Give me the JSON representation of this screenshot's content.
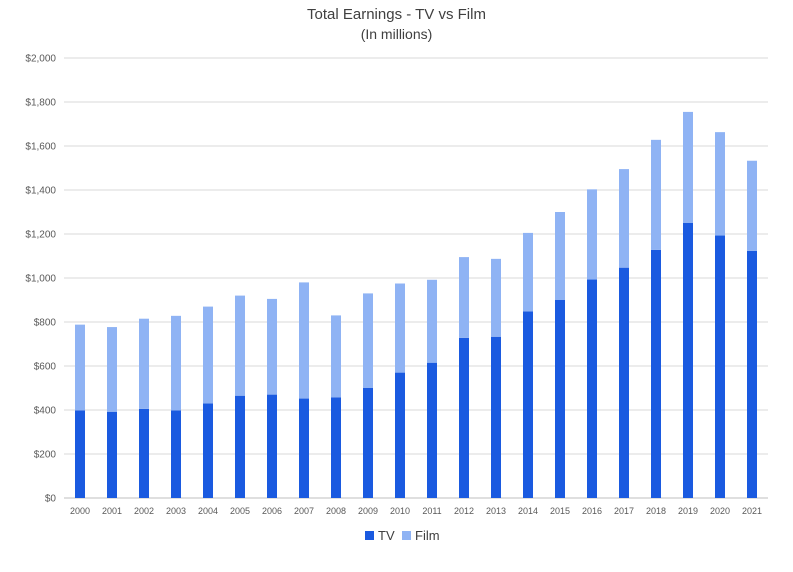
{
  "chart_data": {
    "type": "bar",
    "stacked": true,
    "title": "Total Earnings - TV vs Film",
    "subtitle": "(In millions)",
    "categories": [
      "2000",
      "2001",
      "2002",
      "2003",
      "2004",
      "2005",
      "2006",
      "2007",
      "2008",
      "2009",
      "2010",
      "2011",
      "2012",
      "2013",
      "2014",
      "2015",
      "2016",
      "2017",
      "2018",
      "2019",
      "2020",
      "2021"
    ],
    "series": [
      {
        "name": "TV",
        "color": "#1a5ae0",
        "values": [
          398,
          392,
          405,
          398,
          430,
          465,
          470,
          452,
          457,
          500,
          570,
          615,
          728,
          733,
          848,
          900,
          993,
          1047,
          1128,
          1250,
          1193,
          1123
        ]
      },
      {
        "name": "Film",
        "color": "#8fb3f4",
        "values": [
          390,
          385,
          410,
          430,
          440,
          455,
          435,
          528,
          373,
          430,
          405,
          377,
          367,
          354,
          357,
          400,
          410,
          448,
          500,
          505,
          470,
          410
        ]
      }
    ],
    "y_ticks": [
      "$0",
      "$200",
      "$400",
      "$600",
      "$800",
      "$1,000",
      "$1,200",
      "$1,400",
      "$1,600",
      "$1,800",
      "$2,000"
    ],
    "ylim": [
      0,
      2000
    ],
    "grid": true,
    "legend_position": "bottom"
  }
}
